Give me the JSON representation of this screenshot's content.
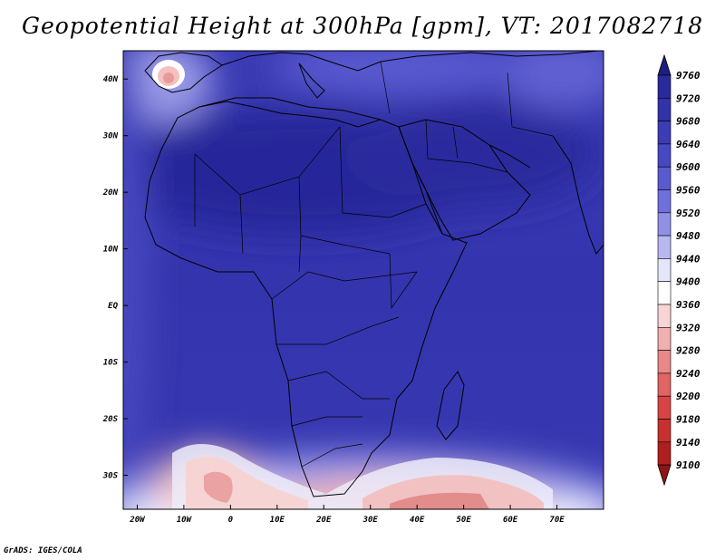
{
  "title": "Geopotential Height at 300hPa [gpm], VT: 2017082718",
  "credit": "GrADS: IGES/COLA",
  "map": {
    "lon_range": [
      -23,
      80
    ],
    "lat_range": [
      -36,
      45
    ],
    "lon_ticks": [
      {
        "value": -20,
        "label": "20W"
      },
      {
        "value": -10,
        "label": "10W"
      },
      {
        "value": 0,
        "label": "0"
      },
      {
        "value": 10,
        "label": "10E"
      },
      {
        "value": 20,
        "label": "20E"
      },
      {
        "value": 30,
        "label": "30E"
      },
      {
        "value": 40,
        "label": "40E"
      },
      {
        "value": 50,
        "label": "50E"
      },
      {
        "value": 60,
        "label": "60E"
      },
      {
        "value": 70,
        "label": "70E"
      }
    ],
    "lat_ticks": [
      {
        "value": 40,
        "label": "40N"
      },
      {
        "value": 30,
        "label": "30N"
      },
      {
        "value": 20,
        "label": "20N"
      },
      {
        "value": 10,
        "label": "10N"
      },
      {
        "value": 0,
        "label": "EQ"
      },
      {
        "value": -10,
        "label": "10S"
      },
      {
        "value": -20,
        "label": "20S"
      },
      {
        "value": -30,
        "label": "30S"
      }
    ]
  },
  "colorbar": {
    "levels": [
      "9760",
      "9720",
      "9680",
      "9640",
      "9600",
      "9560",
      "9520",
      "9480",
      "9440",
      "9400",
      "9360",
      "9320",
      "9280",
      "9240",
      "9200",
      "9180",
      "9140",
      "9100"
    ],
    "colors": [
      "#1e1e80",
      "#2a2a9a",
      "#3232aa",
      "#3c3cb6",
      "#4848c2",
      "#5a5ad0",
      "#7070dc",
      "#9090e6",
      "#b8b8f0",
      "#e6e6fa",
      "#ffffff",
      "#f8d4d4",
      "#f0b0b0",
      "#e88888",
      "#e06464",
      "#d84444",
      "#c83030",
      "#b01e1e",
      "#901414"
    ]
  }
}
